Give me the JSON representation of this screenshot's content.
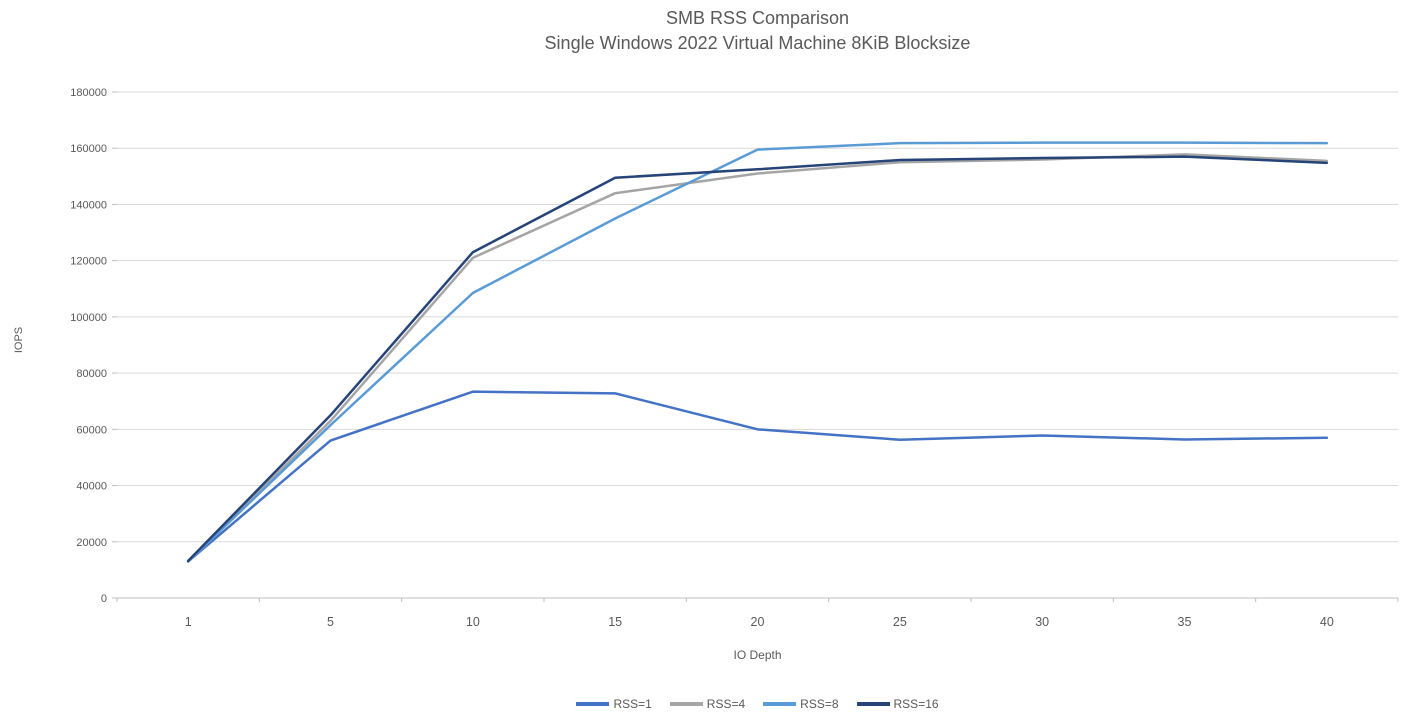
{
  "chart_data": {
    "type": "line",
    "title": "SMB RSS Comparison",
    "subtitle": "Single Windows 2022 Virtual Machine 8KiB Blocksize",
    "xlabel": "IO Depth",
    "ylabel": "IOPS",
    "categories": [
      1,
      5,
      10,
      15,
      20,
      25,
      30,
      35,
      40
    ],
    "series": [
      {
        "name": "RSS=1",
        "color": "#4472C4",
        "values": [
          13000,
          56000,
          73400,
          72800,
          60000,
          56300,
          57800,
          56400,
          57000
        ]
      },
      {
        "name": "RSS=4",
        "color": "#A5A5A5",
        "values": [
          13000,
          63000,
          121000,
          144000,
          151000,
          155000,
          156000,
          157800,
          155500
        ]
      },
      {
        "name": "RSS=8",
        "color": "#5B9BD5",
        "values": [
          13000,
          61500,
          108500,
          135000,
          159500,
          161800,
          162000,
          162000,
          161800
        ]
      },
      {
        "name": "RSS=16",
        "color": "#264478",
        "values": [
          13200,
          65000,
          123000,
          149500,
          152500,
          155800,
          156500,
          157000,
          154800
        ]
      }
    ],
    "ylim": [
      0,
      180000
    ],
    "ytick_step": 20000,
    "grid": true,
    "legend_position": "bottom"
  },
  "theme": {
    "grid_color": "#D9D9D9",
    "axis_color": "#BFBFBF",
    "text_color": "#595959",
    "background": "#FFFFFF"
  }
}
